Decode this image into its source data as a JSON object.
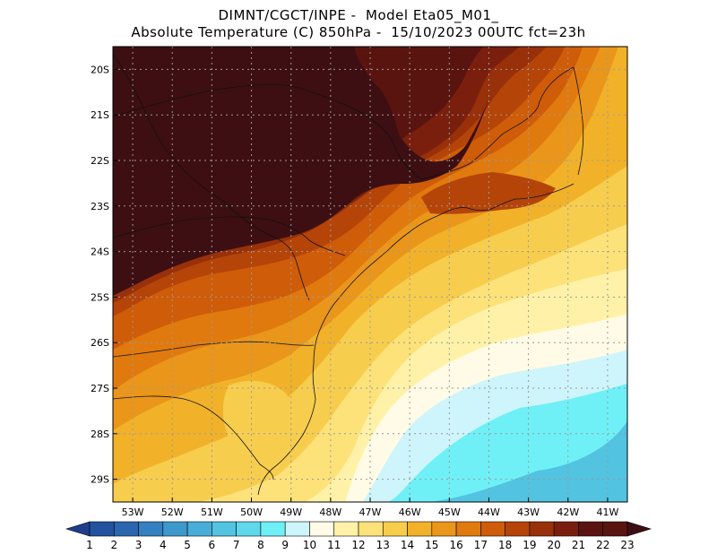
{
  "header": {
    "line1": "DIMNT/CGCT/INPE -  Model Eta05_M01_",
    "line2": "Absolute Temperature (C) 850hPa -  15/10/2023 00UTC fct=23h"
  },
  "map": {
    "lat_labels": [
      "20S",
      "21S",
      "22S",
      "23S",
      "24S",
      "25S",
      "26S",
      "27S",
      "28S",
      "29S"
    ],
    "lon_labels": [
      "53W",
      "52W",
      "51W",
      "50W",
      "49W",
      "48W",
      "47W",
      "46W",
      "45W",
      "44W",
      "43W",
      "42W",
      "41W"
    ],
    "lat_range": [
      -29.5,
      -19.5
    ],
    "lon_range": [
      -53.5,
      -40.5
    ],
    "grid": true
  },
  "colorbar": {
    "labels": [
      "1",
      "2",
      "3",
      "4",
      "5",
      "6",
      "7",
      "8",
      "9",
      "10",
      "11",
      "12",
      "13",
      "14",
      "15",
      "16",
      "17",
      "18",
      "19",
      "20",
      "21",
      "22",
      "23"
    ],
    "colors": [
      "#1f3d8a",
      "#23529e",
      "#2a67b0",
      "#3580c0",
      "#3f98cc",
      "#48add8",
      "#52c3e0",
      "#5ed8ea",
      "#6ef0f6",
      "#cdf5fb",
      "#fffbe6",
      "#fff2a8",
      "#fde27a",
      "#f7cd4e",
      "#f1b229",
      "#ea961a",
      "#e07a0f",
      "#cf5c08",
      "#b54408",
      "#983009",
      "#7a1f0e",
      "#5a1410",
      "#3d0f12"
    ]
  }
}
